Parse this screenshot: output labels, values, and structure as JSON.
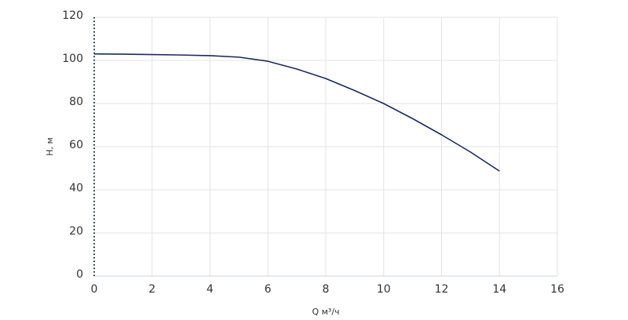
{
  "chart_data": {
    "type": "line",
    "x_label": "Q м³/ч",
    "y_label": "H, м",
    "x": [
      0,
      1,
      2,
      3,
      4,
      5,
      6,
      7,
      8,
      9,
      10,
      11,
      12,
      13,
      14
    ],
    "series": [
      {
        "name": "H",
        "color": "#1b2a63",
        "values": [
          103,
          102.9,
          102.7,
          102.5,
          102.2,
          101.5,
          99.6,
          96,
          91.6,
          86,
          80,
          73,
          65.5,
          57.5,
          48.7
        ]
      }
    ],
    "xlim": [
      0,
      16
    ],
    "xticks": [
      0,
      2,
      4,
      6,
      8,
      10,
      12,
      14,
      16
    ],
    "ylim": [
      0,
      120
    ],
    "yticks": [
      0,
      20,
      40,
      60,
      80,
      100,
      120
    ],
    "grid": true
  }
}
